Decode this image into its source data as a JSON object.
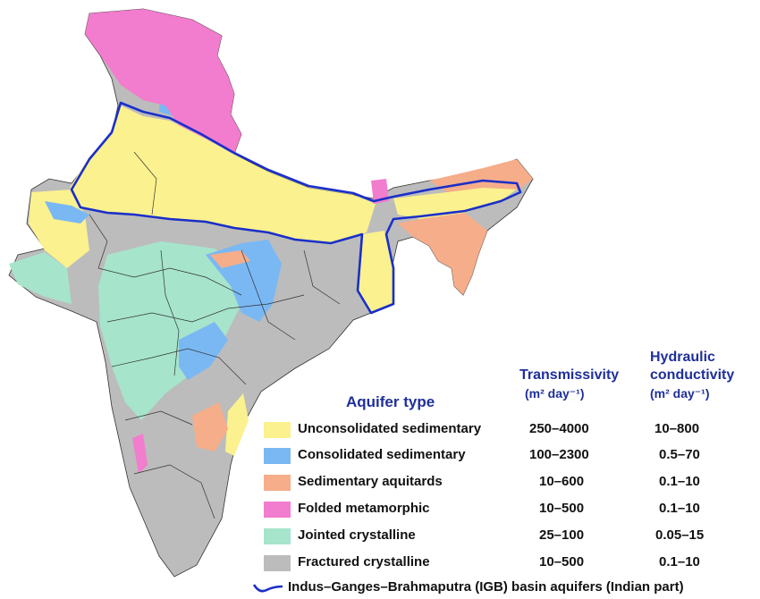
{
  "colors": {
    "unconsolidated": "#fbf18e",
    "consolidated": "#7ab8f4",
    "aquitards": "#f6ad8a",
    "folded": "#f27ccd",
    "jointed": "#a6e4cc",
    "fractured": "#bcbcbc",
    "igb_line": "#1a2fc9",
    "header_text": "#1f2f9a"
  },
  "legend": {
    "title": "Aquifer type",
    "col_transmissivity": "Transmissivity",
    "col_transmissivity_unit": "(m² day⁻¹)",
    "col_conductivity_line1": "Hydraulic",
    "col_conductivity_line2": "conductivity",
    "col_conductivity_unit": "(m² day⁻¹)",
    "items": [
      {
        "label": "Unconsolidated sedimentary",
        "transmissivity": "250–4000",
        "conductivity": "10–800",
        "color_key": "unconsolidated"
      },
      {
        "label": "Consolidated sedimentary",
        "transmissivity": "100–2300",
        "conductivity": "0.5–70",
        "color_key": "consolidated"
      },
      {
        "label": "Sedimentary aquitards",
        "transmissivity": "10–600",
        "conductivity": "0.1–10",
        "color_key": "aquitards"
      },
      {
        "label": "Folded metamorphic",
        "transmissivity": "10–500",
        "conductivity": "0.1–10",
        "color_key": "folded"
      },
      {
        "label": "Jointed crystalline",
        "transmissivity": "25–100",
        "conductivity": "0.05–15",
        "color_key": "jointed"
      },
      {
        "label": "Fractured crystalline",
        "transmissivity": "10–500",
        "conductivity": "0.1–10",
        "color_key": "fractured"
      }
    ],
    "igb_label": "Indus–Ganges–Brahmaputra (IGB) basin aquifers (Indian part)"
  }
}
